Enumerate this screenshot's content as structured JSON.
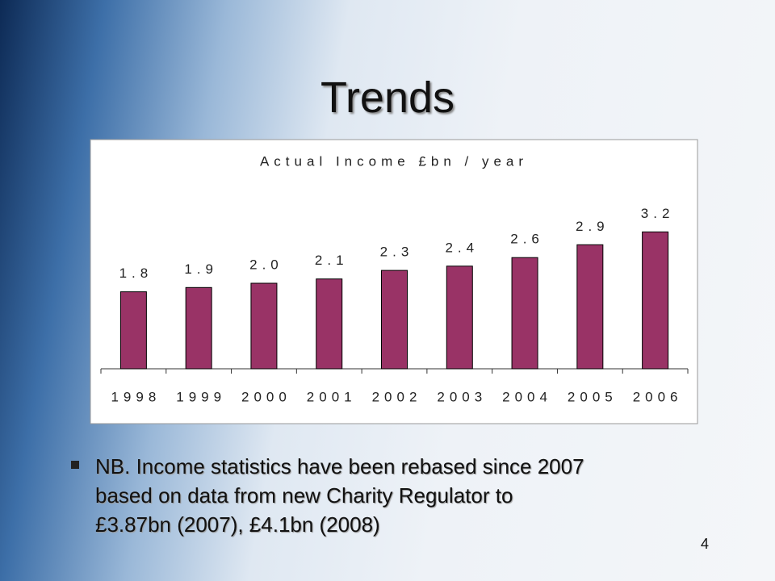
{
  "slide_title": "Trends",
  "chart_data": {
    "type": "bar",
    "title": "Actual Income £bn / year",
    "categories": [
      "1998",
      "1999",
      "2000",
      "2001",
      "2002",
      "2003",
      "2004",
      "2005",
      "2006"
    ],
    "values": [
      1.8,
      1.9,
      2.0,
      2.1,
      2.3,
      2.4,
      2.6,
      2.9,
      3.2
    ],
    "value_labels": [
      "1.8",
      "1.9",
      "2.0",
      "2.1",
      "2.3",
      "2.4",
      "2.6",
      "2.9",
      "3.2"
    ],
    "color": "#993366"
  },
  "note_lines": [
    "NB. Income statistics have been rebased since 2007",
    "based on data from new Charity Regulator to",
    "£3.87bn (2007), £4.1bn (2008)"
  ],
  "page_number": "4"
}
